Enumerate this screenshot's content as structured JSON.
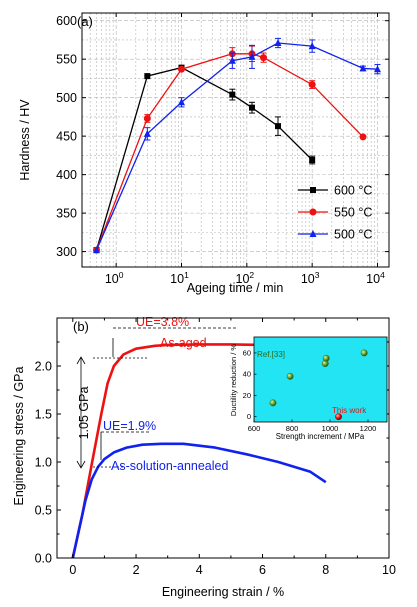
{
  "chart_data": [
    {
      "type": "line",
      "panel_label": "(a)",
      "xlabel": "Ageing time / min",
      "ylabel": "Hardness / HV",
      "x_scale": "log",
      "xlim": [
        0.3,
        15000
      ],
      "ylim": [
        280,
        610
      ],
      "x_ticks": [
        1,
        10,
        100,
        1000,
        10000
      ],
      "x_tick_labels": [
        {
          "base": "10",
          "exp": "0"
        },
        {
          "base": "10",
          "exp": "1"
        },
        {
          "base": "10",
          "exp": "2"
        },
        {
          "base": "10",
          "exp": "3"
        },
        {
          "base": "10",
          "exp": "4"
        }
      ],
      "y_ticks": [
        300,
        350,
        400,
        450,
        500,
        550,
        600
      ],
      "y_tick_labels": [
        "300",
        "350",
        "400",
        "450",
        "500",
        "550",
        "600"
      ],
      "grid": true,
      "legend_position": "bottom-right",
      "series": [
        {
          "name": "600 °C",
          "color": "#000000",
          "marker": "square",
          "x": [
            0.5,
            3,
            10,
            60,
            120,
            300,
            1000
          ],
          "y": [
            302,
            528,
            539,
            504,
            487,
            463,
            419
          ],
          "err": [
            0,
            0,
            0,
            7,
            7,
            12,
            5
          ]
        },
        {
          "name": "550 °C",
          "color": "#ee1111",
          "marker": "circle",
          "x": [
            0.5,
            3,
            10,
            60,
            120,
            180,
            1000,
            6000
          ],
          "y": [
            302,
            473,
            537,
            557,
            557,
            552,
            517,
            449
          ],
          "err": [
            0,
            5,
            0,
            8,
            10,
            6,
            5,
            0
          ]
        },
        {
          "name": "500 °C",
          "color": "#1122ee",
          "marker": "triangle",
          "x": [
            0.5,
            3,
            10,
            60,
            120,
            300,
            1000,
            6000,
            10000
          ],
          "y": [
            302,
            453,
            494,
            548,
            553,
            571,
            567,
            538,
            537
          ],
          "err": [
            0,
            8,
            6,
            10,
            15,
            6,
            8,
            3,
            6
          ]
        }
      ]
    },
    {
      "type": "line",
      "panel_label": "(b)",
      "xlabel": "Engineering strain / %",
      "ylabel": "Engineering stress / GPa",
      "xlim": [
        -0.5,
        10
      ],
      "ylim": [
        0,
        2.5
      ],
      "x_ticks": [
        0,
        2,
        4,
        6,
        8,
        10
      ],
      "x_tick_labels": [
        "0",
        "2",
        "4",
        "6",
        "8",
        "10"
      ],
      "y_ticks": [
        0,
        0.5,
        1,
        1.5,
        2
      ],
      "y_tick_labels": [
        "0.0",
        "0.5",
        "1.0",
        "1.5",
        "2.0"
      ],
      "grid": false,
      "series": [
        {
          "name": "As-aged",
          "color": "#ee1111",
          "x": [
            0,
            0.3,
            0.6,
            0.9,
            1.1,
            1.3,
            1.6,
            2.0,
            2.6,
            3.0,
            4.0,
            5.0,
            6.0,
            7.0,
            8.0,
            8.6
          ],
          "y": [
            0,
            0.45,
            0.98,
            1.5,
            1.82,
            2.0,
            2.12,
            2.18,
            2.21,
            2.22,
            2.225,
            2.225,
            2.22,
            2.21,
            2.2,
            2.19
          ]
        },
        {
          "name": "As-solution-annealed",
          "color": "#1122ee",
          "x": [
            0,
            0.2,
            0.4,
            0.6,
            0.8,
            1.0,
            1.3,
            1.7,
            2.2,
            2.8,
            3.5,
            4.5,
            5.5,
            6.5,
            7.5,
            8.0
          ],
          "y": [
            0,
            0.3,
            0.6,
            0.82,
            0.95,
            1.03,
            1.1,
            1.15,
            1.18,
            1.19,
            1.19,
            1.15,
            1.08,
            1.0,
            0.9,
            0.79
          ]
        }
      ],
      "annotations": {
        "ue_aged": "UE=3.8%",
        "ue_annealed": "UE=1.9%",
        "label_aged": "As-aged",
        "label_annealed": "As-solution-annealed",
        "gap": "1.05 GPa"
      },
      "inset": {
        "type": "scatter",
        "xlabel": "Strength increment / MPa",
        "ylabel": "Ductility reduction / %",
        "xlim": [
          600,
          1300
        ],
        "ylim": [
          -5,
          75
        ],
        "x_ticks": [
          600,
          800,
          1000,
          1200
        ],
        "x_tick_labels": [
          "600",
          "800",
          "1000",
          "1200"
        ],
        "y_ticks": [
          0,
          20,
          40,
          60
        ],
        "y_tick_labels": [
          "0",
          "20",
          "40",
          "60"
        ],
        "background": "#22e4f2",
        "series": [
          {
            "name": "Ref.[33]",
            "color": "#3a7a22",
            "x": [
              700,
              790,
              975,
              980,
              1180
            ],
            "y": [
              13,
              38,
              50,
              55,
              60
            ]
          },
          {
            "name": "This work",
            "color": "#ee1111",
            "x": [
              1045
            ],
            "y": [
              0
            ]
          }
        ]
      }
    }
  ]
}
